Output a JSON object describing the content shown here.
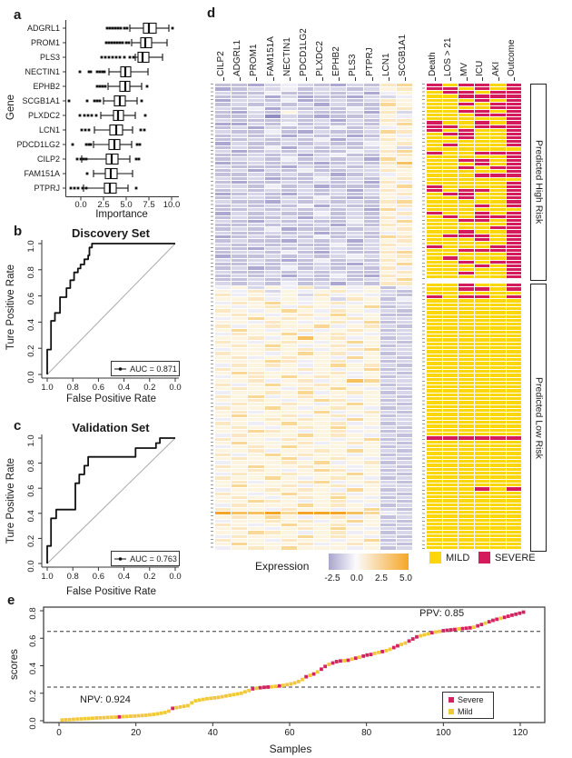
{
  "chart_data": [
    {
      "id": "a",
      "type": "box",
      "panel_label": "a",
      "xlabel": "Importance",
      "ylabel": "Gene",
      "xticks": [
        "0.0",
        "2.5",
        "5.0",
        "7.5",
        "10.0"
      ],
      "xtick_values": [
        0,
        2.5,
        5,
        7.5,
        10
      ],
      "xlim": [
        -1.5,
        10.5
      ],
      "boxes": [
        {
          "name": "ADGRL1",
          "lo": 5.4,
          "q1": 6.9,
          "med": 7.5,
          "q3": 8.3,
          "hi": 9.7,
          "out": [
            2.9,
            3.2,
            3.5,
            3.8,
            4.1,
            4.4,
            4.8,
            5.1,
            10.1
          ]
        },
        {
          "name": "PROM1",
          "lo": 5.6,
          "q1": 6.6,
          "med": 7.1,
          "q3": 7.8,
          "hi": 9.5,
          "out": [
            2.8,
            3.1,
            3.4,
            3.7,
            4.0,
            4.3,
            4.6,
            5.0,
            5.3
          ]
        },
        {
          "name": "PLS3",
          "lo": 6.0,
          "q1": 6.3,
          "med": 6.8,
          "q3": 7.5,
          "hi": 9.0,
          "out": [
            2.3,
            2.7,
            3.1,
            3.5,
            3.9,
            4.3,
            4.8,
            5.4,
            5.8
          ]
        },
        {
          "name": "NECTIN1",
          "lo": 3.1,
          "q1": 4.4,
          "med": 4.9,
          "q3": 5.5,
          "hi": 7.4,
          "out": [
            -0.1,
            0.9,
            1.1,
            1.8,
            2.1,
            2.4,
            2.6
          ]
        },
        {
          "name": "EPHB2",
          "lo": 3.0,
          "q1": 4.3,
          "med": 4.9,
          "q3": 5.4,
          "hi": 6.7,
          "out": [
            1.8,
            2.1,
            2.4,
            2.7,
            7.3
          ]
        },
        {
          "name": "SCGB1A1",
          "lo": 2.5,
          "q1": 3.7,
          "med": 4.3,
          "q3": 4.9,
          "hi": 6.2,
          "out": [
            -1.3,
            0.7,
            1.5,
            1.8,
            2.1,
            6.7
          ]
        },
        {
          "name": "PLXDC2",
          "lo": 2.2,
          "q1": 3.6,
          "med": 4.1,
          "q3": 4.7,
          "hi": 6.0,
          "out": [
            -0.1,
            0.4,
            0.8,
            1.2,
            1.7,
            7.1
          ]
        },
        {
          "name": "LCN1",
          "lo": 1.5,
          "q1": 3.2,
          "med": 3.9,
          "q3": 4.6,
          "hi": 5.7,
          "out": [
            0.1,
            0.5,
            0.9,
            6.6,
            7.0
          ]
        },
        {
          "name": "PDCD1LG2",
          "lo": 1.4,
          "q1": 3.1,
          "med": 3.7,
          "q3": 4.3,
          "hi": 5.6,
          "out": [
            -0.9,
            0.6,
            0.9,
            1.1,
            6.2,
            6.5
          ]
        },
        {
          "name": "CILP2",
          "lo": 0.1,
          "q1": 2.8,
          "med": 3.4,
          "q3": 4.1,
          "hi": 5.4,
          "out": [
            -0.4,
            0.0,
            0.3,
            0.6,
            6.1,
            6.4
          ]
        },
        {
          "name": "FAM151A",
          "lo": 1.4,
          "q1": 2.7,
          "med": 3.3,
          "q3": 4.0,
          "hi": 5.7,
          "out": [
            0.7
          ]
        },
        {
          "name": "PTPRJ",
          "lo": 0.3,
          "q1": 2.6,
          "med": 3.2,
          "q3": 3.9,
          "hi": 5.2,
          "out": [
            -1.1,
            -0.7,
            -0.3,
            0.2,
            0.6,
            6.1
          ]
        }
      ]
    },
    {
      "id": "b",
      "type": "line",
      "panel_label": "b",
      "title": "Discovery Set",
      "xlabel": "False Positive Rate",
      "ylabel": "Ture Positive Rate",
      "auc_label": "AUC = 0.871",
      "xticks": [
        "1.0",
        "0.8",
        "0.6",
        "0.4",
        "0.2",
        "0.0"
      ],
      "yticks": [
        "0.0",
        "0.2",
        "0.4",
        "0.6",
        "0.8",
        "1.0"
      ],
      "x_axis_reversed": true,
      "curve": [
        [
          1,
          0
        ],
        [
          1,
          0.19
        ],
        [
          0.97,
          0.19
        ],
        [
          0.97,
          0.41
        ],
        [
          0.94,
          0.41
        ],
        [
          0.94,
          0.47
        ],
        [
          0.9,
          0.47
        ],
        [
          0.9,
          0.59
        ],
        [
          0.85,
          0.59
        ],
        [
          0.85,
          0.66
        ],
        [
          0.82,
          0.66
        ],
        [
          0.82,
          0.72
        ],
        [
          0.79,
          0.72
        ],
        [
          0.79,
          0.78
        ],
        [
          0.76,
          0.78
        ],
        [
          0.76,
          0.81
        ],
        [
          0.74,
          0.81
        ],
        [
          0.74,
          0.84
        ],
        [
          0.71,
          0.84
        ],
        [
          0.71,
          0.88
        ],
        [
          0.68,
          0.88
        ],
        [
          0.68,
          0.91
        ],
        [
          0.67,
          0.91
        ],
        [
          0.67,
          0.97
        ],
        [
          0.65,
          0.97
        ],
        [
          0.65,
          1.0
        ],
        [
          0,
          1.0
        ]
      ]
    },
    {
      "id": "c",
      "type": "line",
      "panel_label": "c",
      "title": "Validation Set",
      "xlabel": "False Positive Rate",
      "ylabel": "Ture Positive Rate",
      "auc_label": "AUC = 0.763",
      "xticks": [
        "1.0",
        "0.8",
        "0.6",
        "0.4",
        "0.2",
        "0.0"
      ],
      "yticks": [
        "0.0",
        "0.2",
        "0.4",
        "0.6",
        "0.8",
        "1.0"
      ],
      "x_axis_reversed": true,
      "curve": [
        [
          1,
          0
        ],
        [
          1,
          0.14
        ],
        [
          0.97,
          0.14
        ],
        [
          0.97,
          0.36
        ],
        [
          0.93,
          0.36
        ],
        [
          0.93,
          0.43
        ],
        [
          0.78,
          0.43
        ],
        [
          0.78,
          0.64
        ],
        [
          0.75,
          0.64
        ],
        [
          0.75,
          0.71
        ],
        [
          0.71,
          0.71
        ],
        [
          0.71,
          0.78
        ],
        [
          0.68,
          0.78
        ],
        [
          0.68,
          0.85
        ],
        [
          0.31,
          0.85
        ],
        [
          0.31,
          0.92
        ],
        [
          0.15,
          0.92
        ],
        [
          0.15,
          0.96
        ],
        [
          0.12,
          0.96
        ],
        [
          0.12,
          1.0
        ],
        [
          0,
          1.0
        ]
      ]
    },
    {
      "id": "d",
      "type": "heatmap",
      "panel_label": "d",
      "gene_columns": [
        "CILP2",
        "ADGRL1",
        "PROM1",
        "FAM151A",
        "NECTIN1",
        "PDCD1LG2",
        "PLXDC2",
        "EPHB2",
        "PLS3",
        "PTPRJ",
        "LCN1",
        "SCGB1A1"
      ],
      "clinical_columns": [
        "Death",
        "LOS > 21",
        "MV",
        "ICU",
        "AKI",
        "Outcome"
      ],
      "group_high": "Predicted High Risk",
      "group_low": "Predicted Low Risk",
      "high_risk_rows": 52,
      "expression_label": "Expression",
      "colorbar_ticks": [
        "-2.5",
        "0.0",
        "2.5",
        "5.0"
      ],
      "colorbar": {
        "left": "#A9A5CE",
        "mid": "#FBFBFD",
        "right": "#F5A726",
        "mid_pos": "34%"
      },
      "legend_mild": "MILD",
      "legend_severe": "SEVERE",
      "colors": {
        "mild": "#FBD608",
        "severe": "#D41C5C"
      },
      "palette": {
        "a": "#928EC4",
        "b": "#ACA8D1",
        "c": "#C3C0DC",
        "d": "#D8D6E9",
        "e": "#EFEEF6",
        "f": "#FDF4E0",
        "g": "#FBE8C2",
        "h": "#F9D795",
        "i": "#F7C160",
        "j": "#F4A427"
      },
      "palette_values": {
        "a": -2.5,
        "b": -1.8,
        "c": -1.2,
        "d": -0.7,
        "e": -0.1,
        "f": 0.6,
        "g": 1.2,
        "h": 2.0,
        "i": 3.0,
        "j": 4.5
      },
      "heatmap_rows": [
        "ccbdedcbdcgh",
        "bcddecddcdfg",
        "dcceccdcdbef",
        "ccdbdbccbdde",
        "bddcebcdcdgf",
        "cdcdcdbdcchf",
        "dcebdcdcecfg",
        "cbdcfdccdbgd",
        "ccdadcbccdfe",
        "dcccdcdbdcgg",
        "bbdcecdcdcfh",
        "cdbdcdcecdef",
        "dccecbdccdhg",
        "cdcdbdcdbcfe",
        "ccdcdcebddgf",
        "bdccdcdccefg",
        "cdcebdcdcdfd",
        "dbcdcdccedgh",
        "ccdcdbdeccfg",
        "cddcecdcdbhf",
        "bcdcdcbcdcgi",
        "dcccbdcdcdfg",
        "cdbdceccddgf",
        "ccdcdcdbcdef",
        "dcdbccecdcfg",
        "cbccdcdcdbge",
        "ddcecdbcccfh",
        "cdcdcdcdbdgf",
        "bcdcbdcdcdfg",
        "cddcdcecbcfe",
        "dccbdcdcdcgh",
        "cdcdcebdccfg",
        "ccdcdcdcdbhe",
        "bdcdccecdcfg",
        "cdccdbdcdcge",
        "dcbdcdccecfh",
        "ccdcdcdbdcgf",
        "cdcebccdcdfg",
        "dccdcdbcdcef",
        "bcdcdcecdchg",
        "cdccbdcdbdfg",
        "dcdcdccecdgf",
        "ccbdcdcdcdfe",
        "cddcecbdccgh",
        "bccdcdcdedfg",
        "dcdcbcecdcgf",
        "ccdcdcdcbdfh",
        "cdbcecdcdcge",
        "dccdcdcdccfg",
        "cdcdbdcecbgf",
        "ccdcdccdcdfh",
        "dcdcecdbdcgg",
        "efdfegdfefce",
        "fegdfefgefdc",
        "gefefdgefedc",
        "ffgefefdgfce",
        "egfhfefgefdd",
        "fefgegfefhcd",
        "gfefhfegfedc",
        "fgfefgfhefcc",
        "efhfgfefgfdd",
        "ffegfefgehcd",
        "gefgffhefgdc",
        "fhfefgefgfcd",
        "egffhefgfedd",
        "ffgefifgefcd",
        "gfefgfefhfdc",
        "fgfhfefgefcd",
        "effgfgefghdd",
        "gffefhfgefcd",
        "fgefgffehfdc",
        "fffhgefgefcd",
        "egfgfefhfgdc",
        "gffefgfefhcd",
        "fhgffefgefdc",
        "efgfhfgfefcd",
        "ffgefgefihdd",
        "gefhffgfefcd",
        "fgffegfhfedc",
        "effgfhefgfcd",
        "gfhefgffefdc",
        "ffgfefhgefcd",
        "egffgfefhfdc",
        "gffhfefgfecd",
        "fgefffhefgdc",
        "fhffgefgefcd",
        "effgfgfehfdd",
        "gfefhffgefcd",
        "fgfefgfhfedc",
        "ffhgfefgefcd",
        "egfffhfgfedc",
        "gffegffefhcd",
        "fhfffgefgfdc",
        "efgfhfffefcd",
        "ffgeffgfhfdc",
        "gefhfgffefcd",
        "fgffhefgfedc",
        "efffgfhefgcd",
        "gfhffgffefdc",
        "ffgfefhgefcd",
        "egffgfffhfdc",
        "gffhfefgfecd",
        "fgeffghefgdc",
        "fhffgefgefdd",
        "effgfgfehfcd",
        "gfefhffgefdc",
        "fgfefgfhfecd",
        "ffhgfefgefdc",
        "egfffhfgfecd",
        "gffegffefhdc",
        "jiijhjjjihed",
        "fgfhfefgefcd",
        "effgfgefhfdc",
        "gfefhffgefcd",
        "fgfefgfhfedc",
        "ffhgfefgefcd",
        "egfffhfgfedc",
        "gffegffefhcd",
        "fhfffgefgfdc",
        "efgfhfffefcd"
      ],
      "clinical_rows": [
        "RYRRYR",
        "RRYRYR",
        "YRRYRR",
        "YYRRRR",
        "YYYRYR",
        "YYRYRR",
        "YYYYRR",
        "YYRRYR",
        "YYYRRR",
        "YYYYYR",
        "RYYRYR",
        "RRYRRR",
        "RYRYYR",
        "YRRYYR",
        "YYRYYR",
        "YYYYYR",
        "YRYYYR",
        "YYYYYY",
        "RYYRRR",
        "YYYYYR",
        "YYRRYR",
        "YYYRYR",
        "YYRYRR",
        "YYYYYR",
        "YYYRRR",
        "YYYYYY",
        "YYYYYR",
        "RYYYYR",
        "RYRRYR",
        "YRRYYR",
        "YYRYYR",
        "YYYYYR",
        "YYYRYR",
        "YYYYYY",
        "RYYRYR",
        "YRYRRR",
        "YYRRYR",
        "YYYYYR",
        "YYYYRR",
        "YYRYYR",
        "YRRRYR",
        "YYYRYR",
        "YYYYYR",
        "RYYYRR",
        "YYRRRR",
        "YYYYYR",
        "YRYYYR",
        "YYRYRR",
        "YYYRYR",
        "YYYYYR",
        "YYRYYR",
        "YYYYYR",
        "YYRYYR",
        "YYRRYR",
        "YYYYYY",
        "RYRRYR",
        "YYYYYY",
        "YYYYYY",
        "YYYYYY",
        "YYYYYY",
        "YYYYYY",
        "YYYYYY",
        "YYYYYY",
        "YYYYYY",
        "YYYYYY",
        "YYYYYY",
        "YYYYYY",
        "YYYYYY",
        "YYYYYY",
        "YYYYYY",
        "YYYYYY",
        "YYYYYY",
        "YYYYYY",
        "YYYYYY",
        "YYYYYY",
        "YYYYYY",
        "YYYYYY",
        "YYYYYY",
        "YYYYYY",
        "YYYYYY",
        "YYYYYY",
        "YYYYYY",
        "YYYYYY",
        "YYYYYY",
        "YYYYYY",
        "YYYYYY",
        "YYYYYY",
        "YYYYYY",
        "YYYYYY",
        "YYYYYY",
        "YYYYYY",
        "RRRRRR",
        "YYYYYY",
        "YYYYYY",
        "YYYYYY",
        "YYYYYY",
        "YYYYYY",
        "YYYYYY",
        "YYYYYY",
        "YYYYYY",
        "YYYYYY",
        "YYYYYY",
        "YYYYYY",
        "YYYYYY",
        "YYYRYR",
        "YYYYYY",
        "YYYYYY",
        "YYYYYY",
        "YYYYYY",
        "YYYYYY",
        "YYYYYY",
        "YYYYYY",
        "YYYYYY",
        "YYYYYY",
        "YYYYYY",
        "YYYYYY",
        "YYYYYY",
        "YYYYYY",
        "YYYYYY",
        "YYYYYY"
      ]
    },
    {
      "id": "e",
      "type": "scatter",
      "panel_label": "e",
      "xlabel": "Samples",
      "ylabel": "scores",
      "xticks": [
        "0",
        "20",
        "40",
        "60",
        "80",
        "100",
        "120"
      ],
      "xtick_values": [
        0,
        20,
        40,
        60,
        80,
        100,
        120
      ],
      "yticks": [
        "0.0",
        "0.2",
        "0.4",
        "0.6",
        "0.8"
      ],
      "ylim": [
        0,
        0.8
      ],
      "thresholds": [
        0.245,
        0.65
      ],
      "npv_label": "NPV: 0.924",
      "ppv_label": "PPV: 0.85",
      "legend_severe": "Severe",
      "legend_mild": "Mild",
      "colors": {
        "mild": "#F2C83B",
        "severe": "#D42360"
      },
      "scores": [
        0.005,
        0.007,
        0.008,
        0.01,
        0.012,
        0.013,
        0.015,
        0.016,
        0.018,
        0.02,
        0.021,
        0.022,
        0.024,
        0.025,
        0.026,
        0.028,
        0.03,
        0.031,
        0.033,
        0.034,
        0.036,
        0.038,
        0.04,
        0.043,
        0.046,
        0.05,
        0.055,
        0.06,
        0.07,
        0.09,
        0.095,
        0.1,
        0.105,
        0.11,
        0.13,
        0.145,
        0.15,
        0.155,
        0.16,
        0.163,
        0.166,
        0.17,
        0.175,
        0.18,
        0.185,
        0.19,
        0.195,
        0.2,
        0.21,
        0.22,
        0.232,
        0.236,
        0.24,
        0.243,
        0.245,
        0.247,
        0.25,
        0.253,
        0.257,
        0.262,
        0.268,
        0.275,
        0.285,
        0.3,
        0.32,
        0.33,
        0.34,
        0.355,
        0.375,
        0.395,
        0.41,
        0.42,
        0.43,
        0.435,
        0.437,
        0.44,
        0.448,
        0.455,
        0.462,
        0.47,
        0.478,
        0.482,
        0.49,
        0.497,
        0.503,
        0.51,
        0.52,
        0.532,
        0.545,
        0.555,
        0.565,
        0.58,
        0.595,
        0.61,
        0.618,
        0.625,
        0.632,
        0.64,
        0.645,
        0.65,
        0.655,
        0.658,
        0.661,
        0.664,
        0.668,
        0.67,
        0.673,
        0.676,
        0.68,
        0.69,
        0.7,
        0.71,
        0.72,
        0.73,
        0.738,
        0.745,
        0.752,
        0.76,
        0.768,
        0.775,
        0.782,
        0.79
      ],
      "severity": "mmmmmmmmmmmmmmmsmmmmmmmmmmmmmsmmmmmmmmmmmmmmmmmmmmsmsssmmsmmmmmmsmsmssmsssmsmsmsssmmsmmssmmsssmmmsmmssssmsssmssmsssmssssss"
    }
  ]
}
